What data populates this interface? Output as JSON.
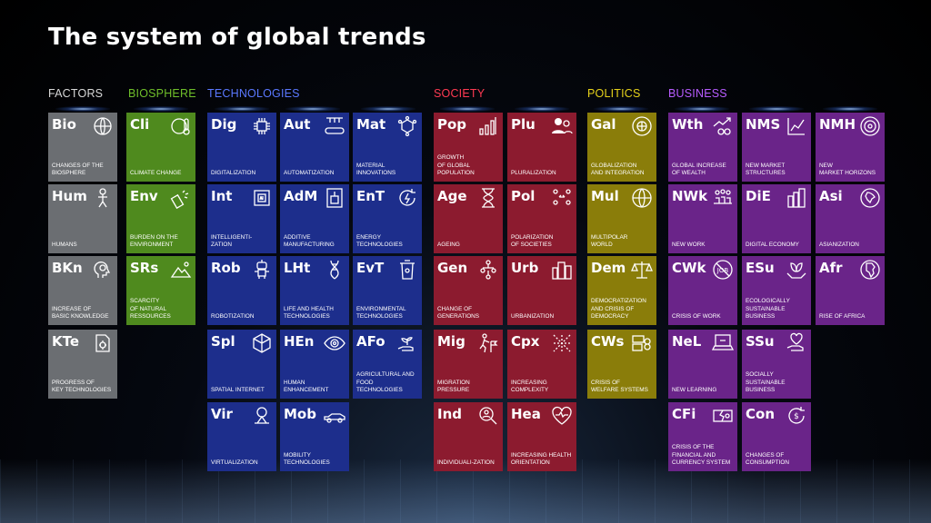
{
  "title": "The system of global trends",
  "categories": [
    {
      "name": "FACTORS",
      "color": "#d8d8d8"
    },
    {
      "name": "BIOSPHERE",
      "color": "#6fbf2a"
    },
    {
      "name": "TECHNOLOGIES",
      "color": "#5a78ff"
    },
    {
      "name": "SOCIETY",
      "color": "#ff3a52"
    },
    {
      "name": "POLITICS",
      "color": "#e6d21a"
    },
    {
      "name": "BUSINESS",
      "color": "#b75cff"
    }
  ],
  "tiles": [
    {
      "abbr": "Bio",
      "label": "CHANGES OF THE\nBIOSPHERE",
      "icon": "globe-leaf-icon"
    },
    {
      "abbr": "Hum",
      "label": "HUMANS",
      "icon": "human-figure-icon"
    },
    {
      "abbr": "BKn",
      "label": "INCREASE OF\nBASIC KNOWLEDGE",
      "icon": "head-brain-icon"
    },
    {
      "abbr": "KTe",
      "label": "PROGRESS OF\nKEY TECHNOLOGIES",
      "icon": "document-gear-icon"
    },
    {
      "abbr": "Cli",
      "label": "CLIMATE CHANGE",
      "icon": "globe-thermometer-icon"
    },
    {
      "abbr": "Env",
      "label": "BURDEN ON THE\nENVIRONMENT",
      "icon": "spray-pollution-icon"
    },
    {
      "abbr": "SRs",
      "label": "SCARCITY\nOF NATURAL\nRESSOURCES",
      "icon": "mountain-icon"
    },
    {
      "abbr": "Dig",
      "label": "DIGITALIZATION",
      "icon": "chip-icon"
    },
    {
      "abbr": "Int",
      "label": "INTELLIGENTI-\nZATION",
      "icon": "ai-chip-icon"
    },
    {
      "abbr": "Rob",
      "label": "ROBOTIZATION",
      "icon": "robot-icon"
    },
    {
      "abbr": "Spl",
      "label": "SPATIAL INTERNET",
      "icon": "cube-network-icon"
    },
    {
      "abbr": "Vir",
      "label": "VIRTUALIZATION",
      "icon": "hologram-icon"
    },
    {
      "abbr": "Aut",
      "label": "AUTOMATIZATION",
      "icon": "conveyor-icon"
    },
    {
      "abbr": "AdM",
      "label": "ADDITIVE\nMANUFACTURING",
      "icon": "3d-printer-icon"
    },
    {
      "abbr": "LHt",
      "label": "LIFE AND HEALTH\nTECHNOLOGIES",
      "icon": "dna-icon"
    },
    {
      "abbr": "HEn",
      "label": "HUMAN\nENHANCEMENT",
      "icon": "eye-icon"
    },
    {
      "abbr": "Mob",
      "label": "MOBILITY\nTECHNOLOGIES",
      "icon": "car-icon"
    },
    {
      "abbr": "Mat",
      "label": "MATERIAL\nINNOVATIONS",
      "icon": "molecule-icon"
    },
    {
      "abbr": "EnT",
      "label": "ENERGY\nTECHNOLOGIES",
      "icon": "energy-cycle-icon"
    },
    {
      "abbr": "EvT",
      "label": "ENVIRONMENTAL\nTECHNOLOGIES",
      "icon": "recycle-bin-icon"
    },
    {
      "abbr": "AFo",
      "label": "AGRICULTURAL AND\nFOOD\nTECHNOLOGIES",
      "icon": "plant-hand-icon"
    },
    {
      "abbr": "Pop",
      "label": "GROWTH\nOF GLOBAL\nPOPULATION",
      "icon": "bar-chart-icon"
    },
    {
      "abbr": "Age",
      "label": "AGEING",
      "icon": "hourglass-icon"
    },
    {
      "abbr": "Gen",
      "label": "CHANGE OF\nGENERATIONS",
      "icon": "people-tree-icon"
    },
    {
      "abbr": "Mig",
      "label": "MIGRATION\nPRESSURE",
      "icon": "walking-person-icon"
    },
    {
      "abbr": "Ind",
      "label": "INDIVIDUALI-ZATION",
      "icon": "person-search-icon"
    },
    {
      "abbr": "Plu",
      "label": "PLURALIZATION",
      "icon": "users-icon"
    },
    {
      "abbr": "Pol",
      "label": "POLARIZATION\nOF SOCIETIES",
      "icon": "polarization-icon"
    },
    {
      "abbr": "Urb",
      "label": "URBANIZATION",
      "icon": "city-icon"
    },
    {
      "abbr": "Cpx",
      "label": "INCREASING\nCOMPLEXITY",
      "icon": "network-arrows-icon"
    },
    {
      "abbr": "Hea",
      "label": "INCREASING HEALTH\nORIENTATION",
      "icon": "heart-pulse-icon"
    },
    {
      "abbr": "Gal",
      "label": "GLOBALIZATION\nAND INTEGRATION",
      "icon": "globe-hands-icon"
    },
    {
      "abbr": "Mul",
      "label": "MULTIPOLAR\nWORLD",
      "icon": "globe-icon"
    },
    {
      "abbr": "Dem",
      "label": "DEMOCRATIZATION\nAND CRISIS OF\nDEMOCRACY",
      "icon": "scales-icon"
    },
    {
      "abbr": "CWs",
      "label": "CRISIS OF\nWELFARE SYSTEMS",
      "icon": "money-stack-icon"
    },
    {
      "abbr": "Wth",
      "label": "GLOBAL INCREASE\nOF WEALTH",
      "icon": "growth-coins-icon"
    },
    {
      "abbr": "NWk",
      "label": "NEW WORK",
      "icon": "team-icon"
    },
    {
      "abbr": "CWk",
      "label": "CRISIS OF WORK",
      "icon": "no-job-icon"
    },
    {
      "abbr": "NeL",
      "label": "NEW LEARNING",
      "icon": "laptop-icon"
    },
    {
      "abbr": "CFi",
      "label": "CRISIS OF THE\nFINANCIAL AND\nCURRENCY SYSTEM",
      "icon": "broken-money-icon"
    },
    {
      "abbr": "NMS",
      "label": "NEW MARKET\nSTRUCTURES",
      "icon": "line-chart-icon"
    },
    {
      "abbr": "DiE",
      "label": "DIGITAL ECONOMY",
      "icon": "buildings-icon"
    },
    {
      "abbr": "ESu",
      "label": "ECOLOGICALLY\nSUSTAINABLE\nBUSINESS",
      "icon": "leaf-hands-icon"
    },
    {
      "abbr": "SSu",
      "label": "SOCIALLY\nSUSTAINABLE\nBUSINESS",
      "icon": "heart-hand-icon"
    },
    {
      "abbr": "Con",
      "label": "CHANGES OF\nCONSUMPTION",
      "icon": "money-cycle-icon"
    },
    {
      "abbr": "NMH",
      "label": "NEW\nMARKET HORIZONS",
      "icon": "target-icon"
    },
    {
      "abbr": "Asi",
      "label": "ASIANIZATION",
      "icon": "globe-asia-icon"
    },
    {
      "abbr": "Afr",
      "label": "RISE OF AFRICA",
      "icon": "globe-africa-icon"
    }
  ]
}
